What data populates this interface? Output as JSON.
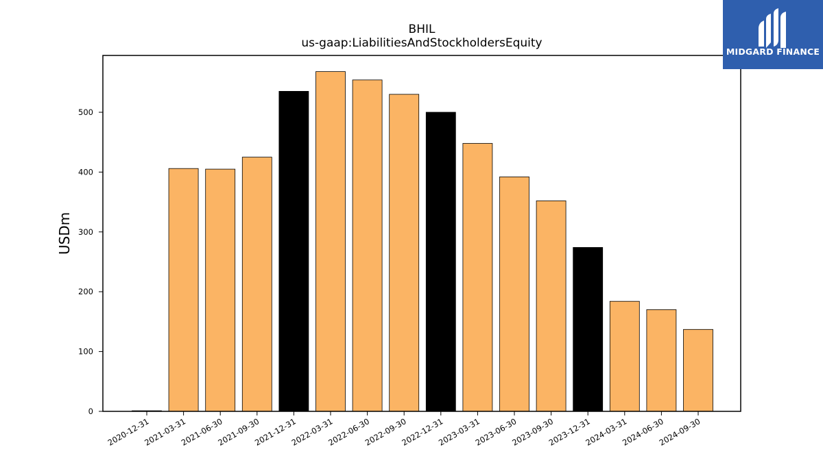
{
  "logo": {
    "text": "MIDGARD FINANCE",
    "background": "#2f5fae",
    "icon": "midgard-m-logo-icon"
  },
  "chart_data": {
    "type": "bar",
    "title": "BHIL",
    "subtitle": "us-gaap:LiabilitiesAndStockholdersEquity",
    "xlabel": "",
    "ylabel": "USDm",
    "ylim": [
      0,
      595
    ],
    "yticks": [
      0,
      100,
      200,
      300,
      400,
      500
    ],
    "grid": false,
    "categories": [
      "2020-12-31",
      "2021-03-31",
      "2021-06-30",
      "2021-09-30",
      "2021-12-31",
      "2022-03-31",
      "2022-06-30",
      "2022-09-30",
      "2022-12-31",
      "2023-03-31",
      "2023-06-30",
      "2023-09-30",
      "2023-12-31",
      "2024-03-31",
      "2024-06-30",
      "2024-09-30"
    ],
    "values": [
      1,
      406,
      405,
      425,
      535,
      568,
      554,
      530,
      500,
      448,
      392,
      352,
      274,
      184,
      170,
      137
    ],
    "bar_colors": [
      "#fbb464",
      "#fbb464",
      "#fbb464",
      "#fbb464",
      "#000000",
      "#fbb464",
      "#fbb464",
      "#fbb464",
      "#000000",
      "#fbb464",
      "#fbb464",
      "#fbb464",
      "#000000",
      "#fbb464",
      "#fbb464",
      "#fbb464"
    ]
  }
}
